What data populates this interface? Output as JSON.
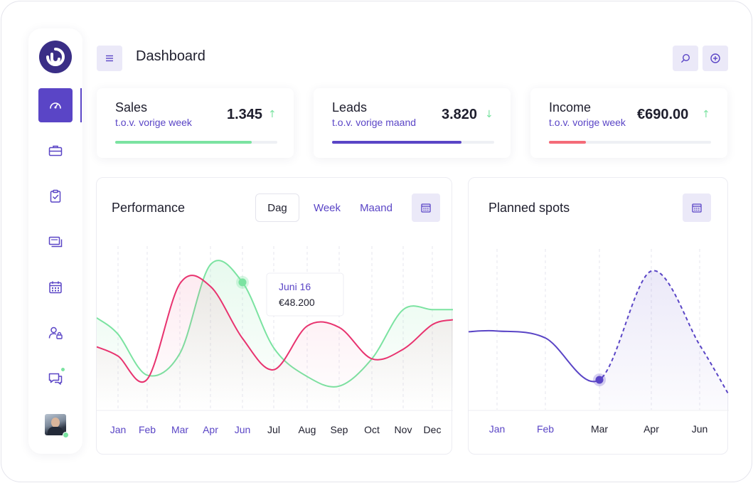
{
  "header": {
    "title": "Dashboard"
  },
  "icons": {
    "menu": "menu-icon",
    "search": "search-icon",
    "add": "plus-circle-icon",
    "calendar": "calendar-icon"
  },
  "colors": {
    "accent": "#5a45c6",
    "green": "#7be3a1",
    "pink": "#e8336f",
    "red_bar": "#f46b78",
    "accent_light": "#ebe9f8"
  },
  "sidebar": {
    "items": [
      {
        "name": "dashboard",
        "icon": "gauge-icon",
        "active": true
      },
      {
        "name": "portfolio",
        "icon": "briefcase-icon",
        "active": false
      },
      {
        "name": "tasks",
        "icon": "clipboard-check-icon",
        "active": false
      },
      {
        "name": "media",
        "icon": "screens-icon",
        "active": false
      },
      {
        "name": "calendar",
        "icon": "calendar-icon",
        "active": false
      },
      {
        "name": "users",
        "icon": "user-lock-icon",
        "active": false
      },
      {
        "name": "messages",
        "icon": "chat-icon",
        "active": false,
        "badge": true
      }
    ]
  },
  "stats": [
    {
      "label": "Sales",
      "sub": "t.o.v. vorige week",
      "value": "1.345",
      "trend": "up",
      "arrow": "↑",
      "progress": 0.84,
      "bar_color": "#7be3a1"
    },
    {
      "label": "Leads",
      "sub": "t.o.v. vorige maand",
      "value": "3.820",
      "trend": "down",
      "arrow": "↓",
      "progress": 0.8,
      "bar_color": "#5a45c6"
    },
    {
      "label": "Income",
      "sub": "t.o.v. vorige week",
      "value": "€690.00",
      "trend": "up",
      "arrow": "↑",
      "progress": 0.23,
      "bar_color": "#f46b78"
    }
  ],
  "performance": {
    "title": "Performance",
    "tabs": [
      {
        "label": "Dag",
        "active": true
      },
      {
        "label": "Week",
        "active": false
      },
      {
        "label": "Maand",
        "active": false
      }
    ],
    "tooltip": {
      "date": "Juni 16",
      "value": "€48.200"
    }
  },
  "planned": {
    "title": "Planned spots"
  },
  "chart_data": [
    {
      "type": "line",
      "title": "Performance",
      "x": [
        "Jan",
        "Feb",
        "Mar",
        "Apr",
        "Jun",
        "Jul",
        "Aug",
        "Sep",
        "Oct",
        "Nov",
        "Dec"
      ],
      "x_highlighted": [
        "Jan",
        "Feb",
        "Mar",
        "Apr",
        "Jun"
      ],
      "series": [
        {
          "color": "#7be3a1",
          "values": [
            0.48,
            0.18,
            0.34,
            0.99,
            0.86,
            0.38,
            0.17,
            0.1,
            0.3,
            0.66,
            0.66
          ]
        },
        {
          "color": "#e8336f",
          "values": [
            0.32,
            0.15,
            0.85,
            0.83,
            0.45,
            0.22,
            0.54,
            0.53,
            0.3,
            0.37,
            0.55
          ]
        }
      ],
      "highlight_point": {
        "series": 0,
        "x": "Jun",
        "label": "Juni 16",
        "value": "€48.200"
      },
      "ylim": [
        0,
        1
      ],
      "grid": "vertical-dashed",
      "legend": "none"
    },
    {
      "type": "area",
      "title": "Planned spots",
      "x": [
        "Jan",
        "Feb",
        "Mar",
        "Apr",
        "Jun"
      ],
      "x_highlighted": [
        "Jan",
        "Feb"
      ],
      "series": [
        {
          "color": "#5a45c6",
          "values": [
            0.55,
            0.5,
            0.2,
            0.98,
            0.45
          ],
          "actual_until": "Mar",
          "forecast_style": "dashed"
        }
      ],
      "highlight_point": {
        "x": "Mar"
      },
      "ylim": [
        0,
        1
      ],
      "grid": "vertical-dashed",
      "legend": "none"
    }
  ]
}
